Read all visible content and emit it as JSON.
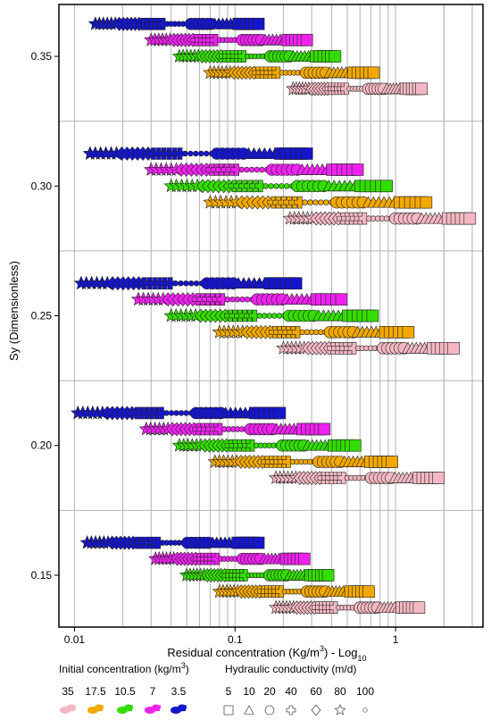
{
  "chart_data": {
    "type": "scatter",
    "xlabel": "Residual concentration (Kg/m",
    "xlabel_sup": "3",
    "xlabel_tail": ") - Log",
    "xlabel_sub": "10",
    "ylabel": "Sy (Dimensionless)",
    "xscale": "log",
    "xlim": [
      0.008,
      3.5
    ],
    "ylim": [
      0.13,
      0.37
    ],
    "x_ticks": [
      {
        "value": 0.01,
        "label": "0.01"
      },
      {
        "value": 0.1,
        "label": "0.1"
      },
      {
        "value": 1,
        "label": "1"
      }
    ],
    "y_ticks": [
      {
        "value": 0.15,
        "label": "0.15"
      },
      {
        "value": 0.2,
        "label": "0.20"
      },
      {
        "value": 0.25,
        "label": "0.25"
      },
      {
        "value": 0.3,
        "label": "0.30"
      },
      {
        "value": 0.35,
        "label": "0.35"
      }
    ],
    "grid": true,
    "sy_groups": [
      0.15,
      0.2,
      0.25,
      0.3,
      0.35
    ],
    "series": [
      {
        "name": "35",
        "color": "#f4b8c4",
        "offset": -0.0125,
        "ranges": [
          [
            0.18,
            1.4
          ],
          [
            0.18,
            1.85
          ],
          [
            0.2,
            2.3
          ],
          [
            0.22,
            2.9
          ],
          [
            0.23,
            1.45
          ]
        ]
      },
      {
        "name": "17.5",
        "color": "#f2a800",
        "offset": -0.0063,
        "ranges": [
          [
            0.08,
            0.68
          ],
          [
            0.075,
            0.95
          ],
          [
            0.08,
            1.2
          ],
          [
            0.07,
            1.55
          ],
          [
            0.07,
            0.73
          ]
        ]
      },
      {
        "name": "10.5",
        "color": "#33dd00",
        "offset": 0.0,
        "ranges": [
          [
            0.05,
            0.38
          ],
          [
            0.045,
            0.56
          ],
          [
            0.04,
            0.72
          ],
          [
            0.04,
            0.88
          ],
          [
            0.045,
            0.42
          ]
        ]
      },
      {
        "name": "7",
        "color": "#ee22ee",
        "offset": 0.0063,
        "ranges": [
          [
            0.032,
            0.27
          ],
          [
            0.028,
            0.36
          ],
          [
            0.025,
            0.46
          ],
          [
            0.03,
            0.58
          ],
          [
            0.03,
            0.28
          ]
        ]
      },
      {
        "name": "3.5",
        "color": "#1515cc",
        "offset": 0.0125,
        "ranges": [
          [
            0.012,
            0.14
          ],
          [
            0.0105,
            0.19
          ],
          [
            0.011,
            0.24
          ],
          [
            0.0125,
            0.28
          ],
          [
            0.0135,
            0.14
          ]
        ]
      }
    ],
    "legend": {
      "concentration_title": "Initial concentration (kg/m",
      "concentration_title_sup": "3",
      "concentration_title_tail": ")",
      "concentration_values": [
        "35",
        "17.5",
        "10.5",
        "7",
        "3.5"
      ],
      "conductivity_title": "Hydraulic conductivity (m/d)",
      "conductivity_values": [
        "5",
        "10",
        "20",
        "40",
        "60",
        "80",
        "100"
      ],
      "conductivity_shapes": [
        "square",
        "triangle",
        "circle",
        "cross",
        "diamond",
        "star",
        "small-circle"
      ]
    }
  }
}
